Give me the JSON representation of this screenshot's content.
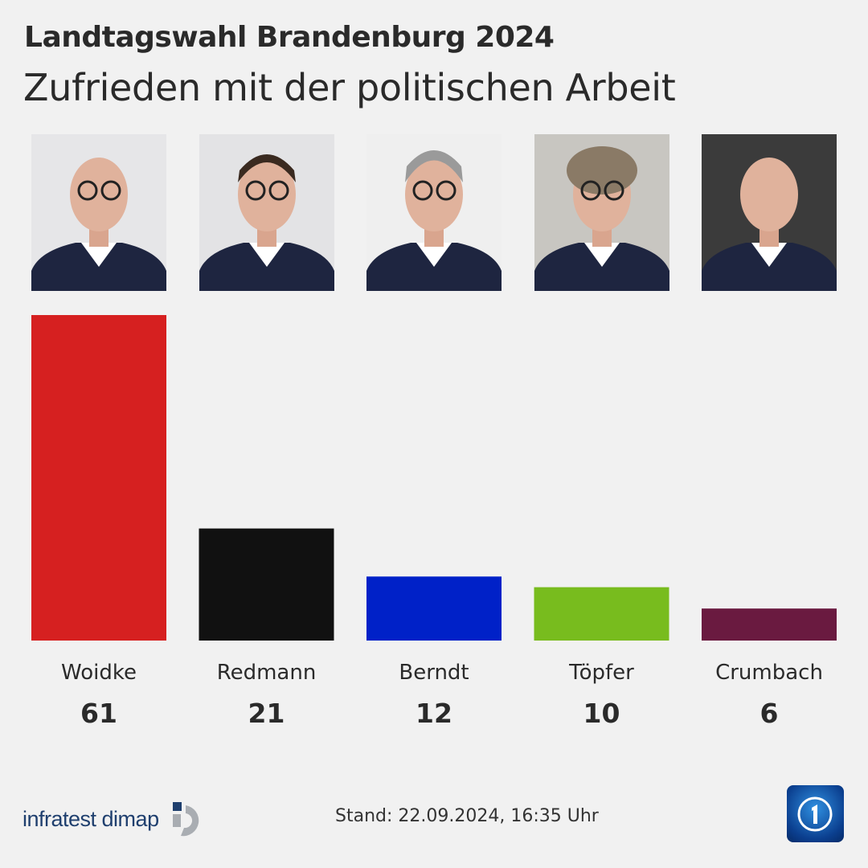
{
  "header": {
    "title": "Landtagswahl Brandenburg 2024",
    "subtitle": "Zufrieden mit der politischen Arbeit"
  },
  "chart_data": {
    "type": "bar",
    "categories": [
      "Woidke",
      "Redmann",
      "Berndt",
      "Töpfer",
      "Crumbach"
    ],
    "values": [
      61,
      21,
      12,
      10,
      6
    ],
    "value_labels": [
      "61",
      "21",
      "12",
      "10",
      "6"
    ],
    "colors": [
      "#d62020",
      "#111111",
      "#0021c8",
      "#78bc1e",
      "#6a1a40"
    ],
    "photo_backgrounds": [
      "#e6e6e8",
      "#e3e3e5",
      "#efefef",
      "#c8c6c1",
      "#3b3b3b"
    ],
    "ylim": [
      0,
      61
    ],
    "grid": false
  },
  "footer": {
    "source": "infratest dimap",
    "stand": "Stand:  22.09.2024, 16:35 Uhr",
    "broadcaster_logo": "tagesschau-logo"
  }
}
